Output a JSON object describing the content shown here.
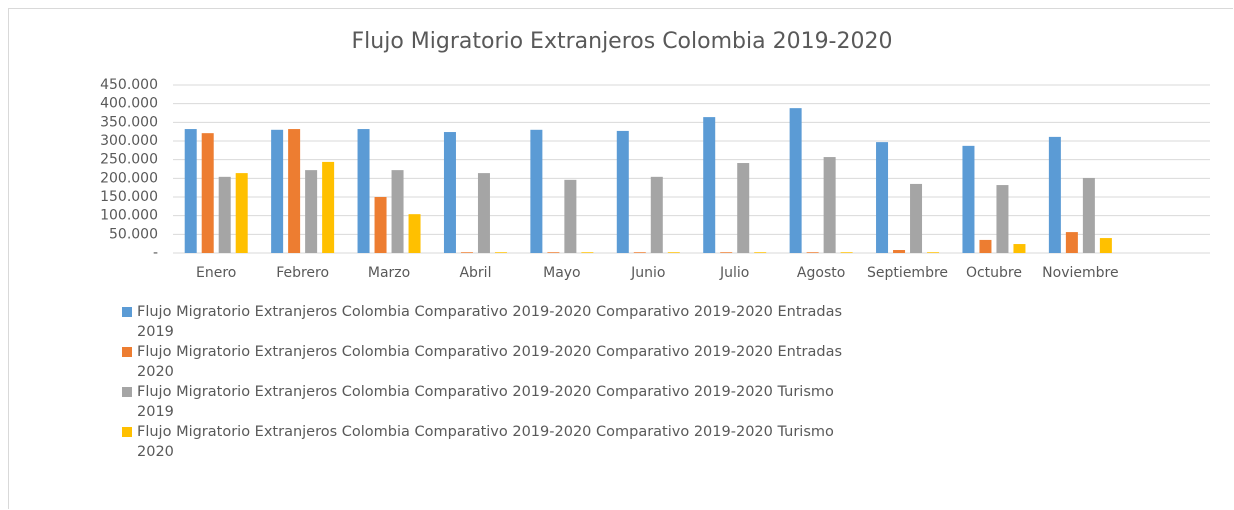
{
  "chart_data": {
    "type": "bar",
    "title": "Flujo Migratorio Extranjeros Colombia 2019-2020",
    "categories": [
      "Enero",
      "Febrero",
      "Marzo",
      "Abril",
      "Mayo",
      "Junio",
      "Julio",
      "Agosto",
      "Septiembre",
      "Octubre",
      "Noviembre",
      null
    ],
    "series": [
      {
        "name": "Flujo Migratorio Extranjeros Colombia Comparativo 2019-2020 Comparativo 2019-2020 Entradas 2019",
        "color": "#5b9bd5",
        "values": [
          332000,
          330000,
          332000,
          324000,
          330000,
          327000,
          364000,
          388000,
          297000,
          287000,
          311000,
          null
        ]
      },
      {
        "name": "Flujo Migratorio Extranjeros Colombia Comparativo 2019-2020 Comparativo 2019-2020 Entradas 2020",
        "color": "#ed7d31",
        "values": [
          321000,
          332000,
          150000,
          2000,
          2000,
          2000,
          2000,
          2000,
          8000,
          35000,
          56000,
          null
        ]
      },
      {
        "name": "Flujo Migratorio Extranjeros Colombia Comparativo 2019-2020 Comparativo 2019-2020 Turismo 2019",
        "color": "#a5a5a5",
        "values": [
          204000,
          222000,
          222000,
          214000,
          196000,
          204000,
          241000,
          257000,
          185000,
          182000,
          201000,
          null
        ]
      },
      {
        "name": "Flujo Migratorio Extranjeros Colombia Comparativo 2019-2020 Comparativo 2019-2020 Turismo 2020",
        "color": "#ffc000",
        "values": [
          214000,
          244000,
          104000,
          2000,
          2000,
          2000,
          2000,
          2000,
          2000,
          24000,
          40000,
          null
        ]
      }
    ],
    "ylim": [
      0,
      450000
    ],
    "yticks": [
      {
        "value": 0,
        "label": "-"
      },
      {
        "value": 50000,
        "label": "50.000"
      },
      {
        "value": 100000,
        "label": "100.000"
      },
      {
        "value": 150000,
        "label": "150.000"
      },
      {
        "value": 200000,
        "label": "200.000"
      },
      {
        "value": 250000,
        "label": "250.000"
      },
      {
        "value": 300000,
        "label": "300.000"
      },
      {
        "value": 350000,
        "label": "350.000"
      },
      {
        "value": 400000,
        "label": "400.000"
      },
      {
        "value": 450000,
        "label": "450.000"
      }
    ],
    "grid": true
  }
}
